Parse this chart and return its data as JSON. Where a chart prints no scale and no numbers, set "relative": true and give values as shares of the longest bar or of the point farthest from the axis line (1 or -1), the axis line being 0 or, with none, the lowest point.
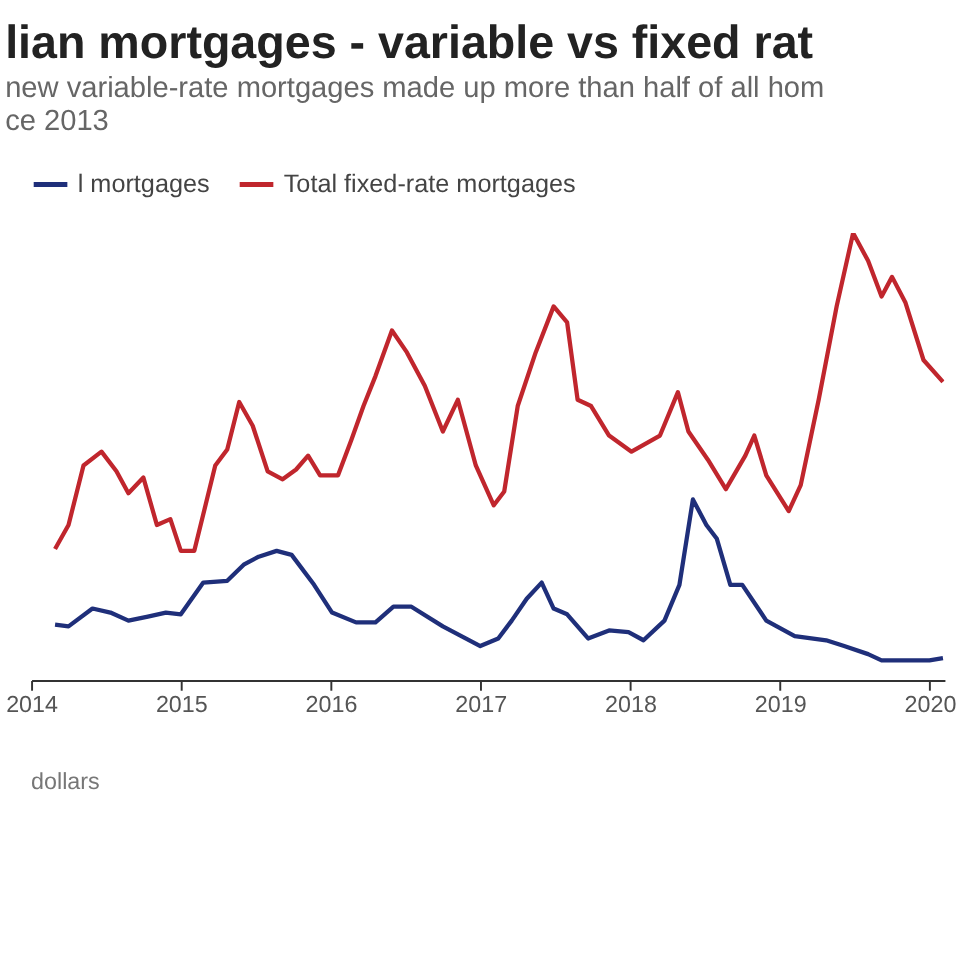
{
  "chart_data": {
    "type": "line",
    "title": "lian mortgages - variable vs fixed rat",
    "subtitle": [
      "new variable-rate mortgages made up more than half of all hom",
      "ce 2013"
    ],
    "relative": true,
    "legend": "top left",
    "grid": false,
    "line_style": "solid",
    "marker": "none",
    "xlim": [
      2014,
      2020.1
    ],
    "xticks": [
      2014,
      2015,
      2016,
      2017,
      2018,
      2019,
      2020
    ],
    "annotations": [
      "dollars"
    ],
    "x": [
      2014.16,
      2014.25,
      2014.41,
      2014.53,
      2014.65,
      2014.78,
      2014.9,
      2015.0,
      2015.15,
      2015.31,
      2015.42,
      2015.52,
      2015.64,
      2015.74,
      2015.89,
      2016.01,
      2016.17,
      2016.3,
      2016.42,
      2016.54,
      2016.75,
      2017.0,
      2017.12,
      2017.21,
      2017.31,
      2017.41,
      2017.49,
      2017.58,
      2017.72,
      2017.86,
      2017.99,
      2018.09,
      2018.23,
      2018.33,
      2018.42,
      2018.51,
      2018.58,
      2018.67,
      2018.75,
      2018.91,
      2019.1,
      2019.31,
      2019.43,
      2019.59,
      2019.68,
      2020.0,
      2020.09
    ],
    "series": [
      {
        "name": "l mortgages",
        "color": "#1f2f7a",
        "values": [
          0.124,
          0.12,
          0.16,
          0.151,
          0.133,
          0.142,
          0.151,
          0.147,
          0.218,
          0.222,
          0.258,
          0.276,
          0.289,
          0.28,
          0.213,
          0.151,
          0.129,
          0.129,
          0.164,
          0.164,
          0.12,
          0.076,
          0.093,
          0.133,
          0.182,
          0.218,
          0.16,
          0.147,
          0.093,
          0.111,
          0.107,
          0.089,
          0.133,
          0.213,
          0.404,
          0.347,
          0.316,
          0.213,
          0.213,
          0.133,
          0.098,
          0.089,
          0.076,
          0.058,
          0.044,
          0.044,
          0.049
        ]
      },
      {
        "name": "Total fixed-rate mortgages",
        "color": "#c0262d",
        "x": [
          2014.16,
          2014.25,
          2014.35,
          2014.47,
          2014.57,
          2014.65,
          2014.75,
          2014.84,
          2014.93,
          2015.0,
          2015.09,
          2015.23,
          2015.31,
          2015.39,
          2015.48,
          2015.58,
          2015.68,
          2015.77,
          2015.85,
          2015.93,
          2016.05,
          2016.14,
          2016.22,
          2016.3,
          2016.41,
          2016.51,
          2016.63,
          2016.75,
          2016.85,
          2016.97,
          2017.09,
          2017.16,
          2017.25,
          2017.37,
          2017.49,
          2017.58,
          2017.65,
          2017.74,
          2017.86,
          2018.01,
          2018.2,
          2018.32,
          2018.39,
          2018.52,
          2018.64,
          2018.77,
          2018.83,
          2018.91,
          2019.06,
          2019.14,
          2019.26,
          2019.38,
          2019.49,
          2019.59,
          2019.68,
          2019.75,
          2019.84,
          2019.96,
          2020.09
        ],
        "values": [
          0.293,
          0.347,
          0.48,
          0.511,
          0.467,
          0.418,
          0.453,
          0.347,
          0.36,
          0.289,
          0.289,
          0.48,
          0.516,
          0.622,
          0.569,
          0.467,
          0.449,
          0.471,
          0.502,
          0.458,
          0.458,
          0.538,
          0.613,
          0.68,
          0.782,
          0.733,
          0.658,
          0.556,
          0.627,
          0.48,
          0.391,
          0.422,
          0.613,
          0.733,
          0.836,
          0.8,
          0.627,
          0.613,
          0.547,
          0.511,
          0.547,
          0.644,
          0.556,
          0.493,
          0.427,
          0.502,
          0.547,
          0.458,
          0.378,
          0.436,
          0.627,
          0.836,
          1,
          0.938,
          0.858,
          0.902,
          0.844,
          0.716,
          0.667
        ]
      }
    ]
  }
}
